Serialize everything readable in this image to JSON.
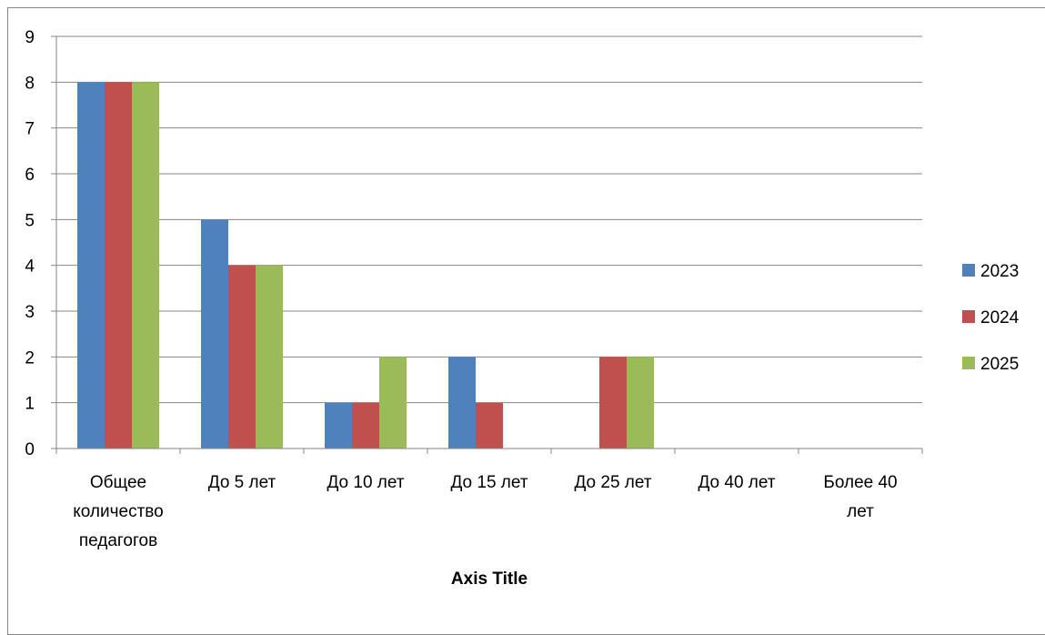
{
  "chart_data": {
    "type": "bar",
    "categories": [
      [
        "Общее",
        "количество",
        "педагогов"
      ],
      [
        "До 5 лет"
      ],
      [
        "До 10 лет"
      ],
      [
        "До 15 лет"
      ],
      [
        "До 25 лет"
      ],
      [
        "До 40 лет"
      ],
      [
        "Более 40",
        "лет"
      ]
    ],
    "series": [
      {
        "name": "2023",
        "color": "#4F81BD",
        "values": [
          8,
          5,
          1,
          2,
          0,
          0,
          0
        ]
      },
      {
        "name": "2024",
        "color": "#C0504D",
        "values": [
          8,
          4,
          1,
          1,
          2,
          0,
          0
        ]
      },
      {
        "name": "2025",
        "color": "#9BBB59",
        "values": [
          8,
          4,
          2,
          0,
          2,
          0,
          0
        ]
      }
    ],
    "title": "",
    "xlabel": "Axis Title",
    "ylabel": "",
    "ylim": [
      0,
      9
    ],
    "yticks": [
      0,
      1,
      2,
      3,
      4,
      5,
      6,
      7,
      8,
      9
    ],
    "grid": true,
    "legend_position": "right"
  }
}
